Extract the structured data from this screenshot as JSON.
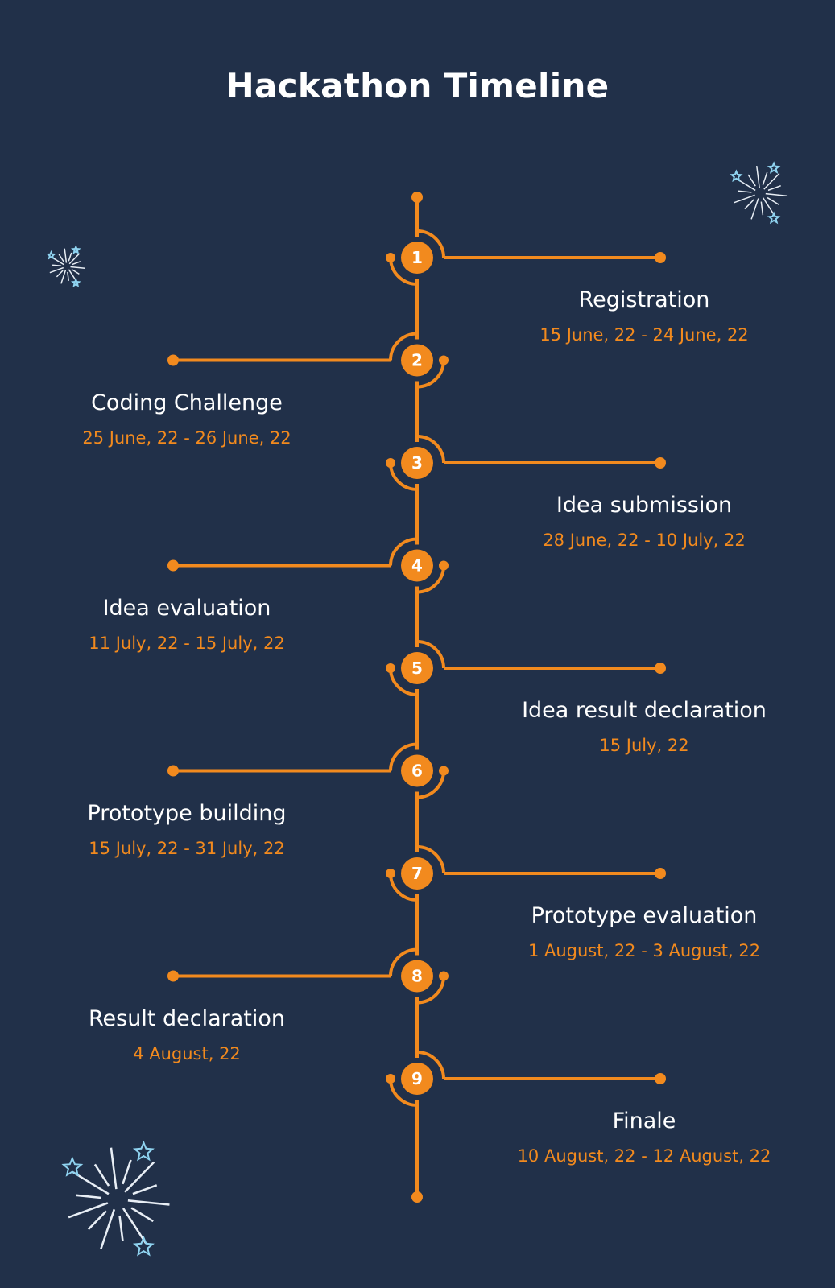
{
  "title": "Hackathon Timeline",
  "colors": {
    "background": "#213049",
    "accent": "#f28a1e",
    "text": "#ffffff",
    "decoration": "#8fd3f0"
  },
  "milestones": [
    {
      "number": "1",
      "name": "Registration",
      "date": "15 June, 22 - 24 June, 22",
      "side": "right"
    },
    {
      "number": "2",
      "name": "Coding Challenge",
      "date": "25 June, 22 - 26 June, 22",
      "side": "left"
    },
    {
      "number": "3",
      "name": "Idea submission",
      "date": "28 June, 22 - 10 July, 22",
      "side": "right"
    },
    {
      "number": "4",
      "name": "Idea evaluation",
      "date": "11 July, 22 - 15 July, 22",
      "side": "left"
    },
    {
      "number": "5",
      "name": "Idea result declaration",
      "date": "15 July, 22",
      "side": "right"
    },
    {
      "number": "6",
      "name": "Prototype building",
      "date": "15 July, 22 - 31 July, 22",
      "side": "left"
    },
    {
      "number": "7",
      "name": "Prototype evaluation",
      "date": "1 August, 22 - 3 August, 22",
      "side": "right"
    },
    {
      "number": "8",
      "name": "Result declaration",
      "date": "4 August, 22",
      "side": "left"
    },
    {
      "number": "9",
      "name": "Finale",
      "date": "10 August, 22 - 12 August, 22",
      "side": "right"
    }
  ],
  "decorations": [
    "firework-icon",
    "firework-icon",
    "firework-icon"
  ]
}
